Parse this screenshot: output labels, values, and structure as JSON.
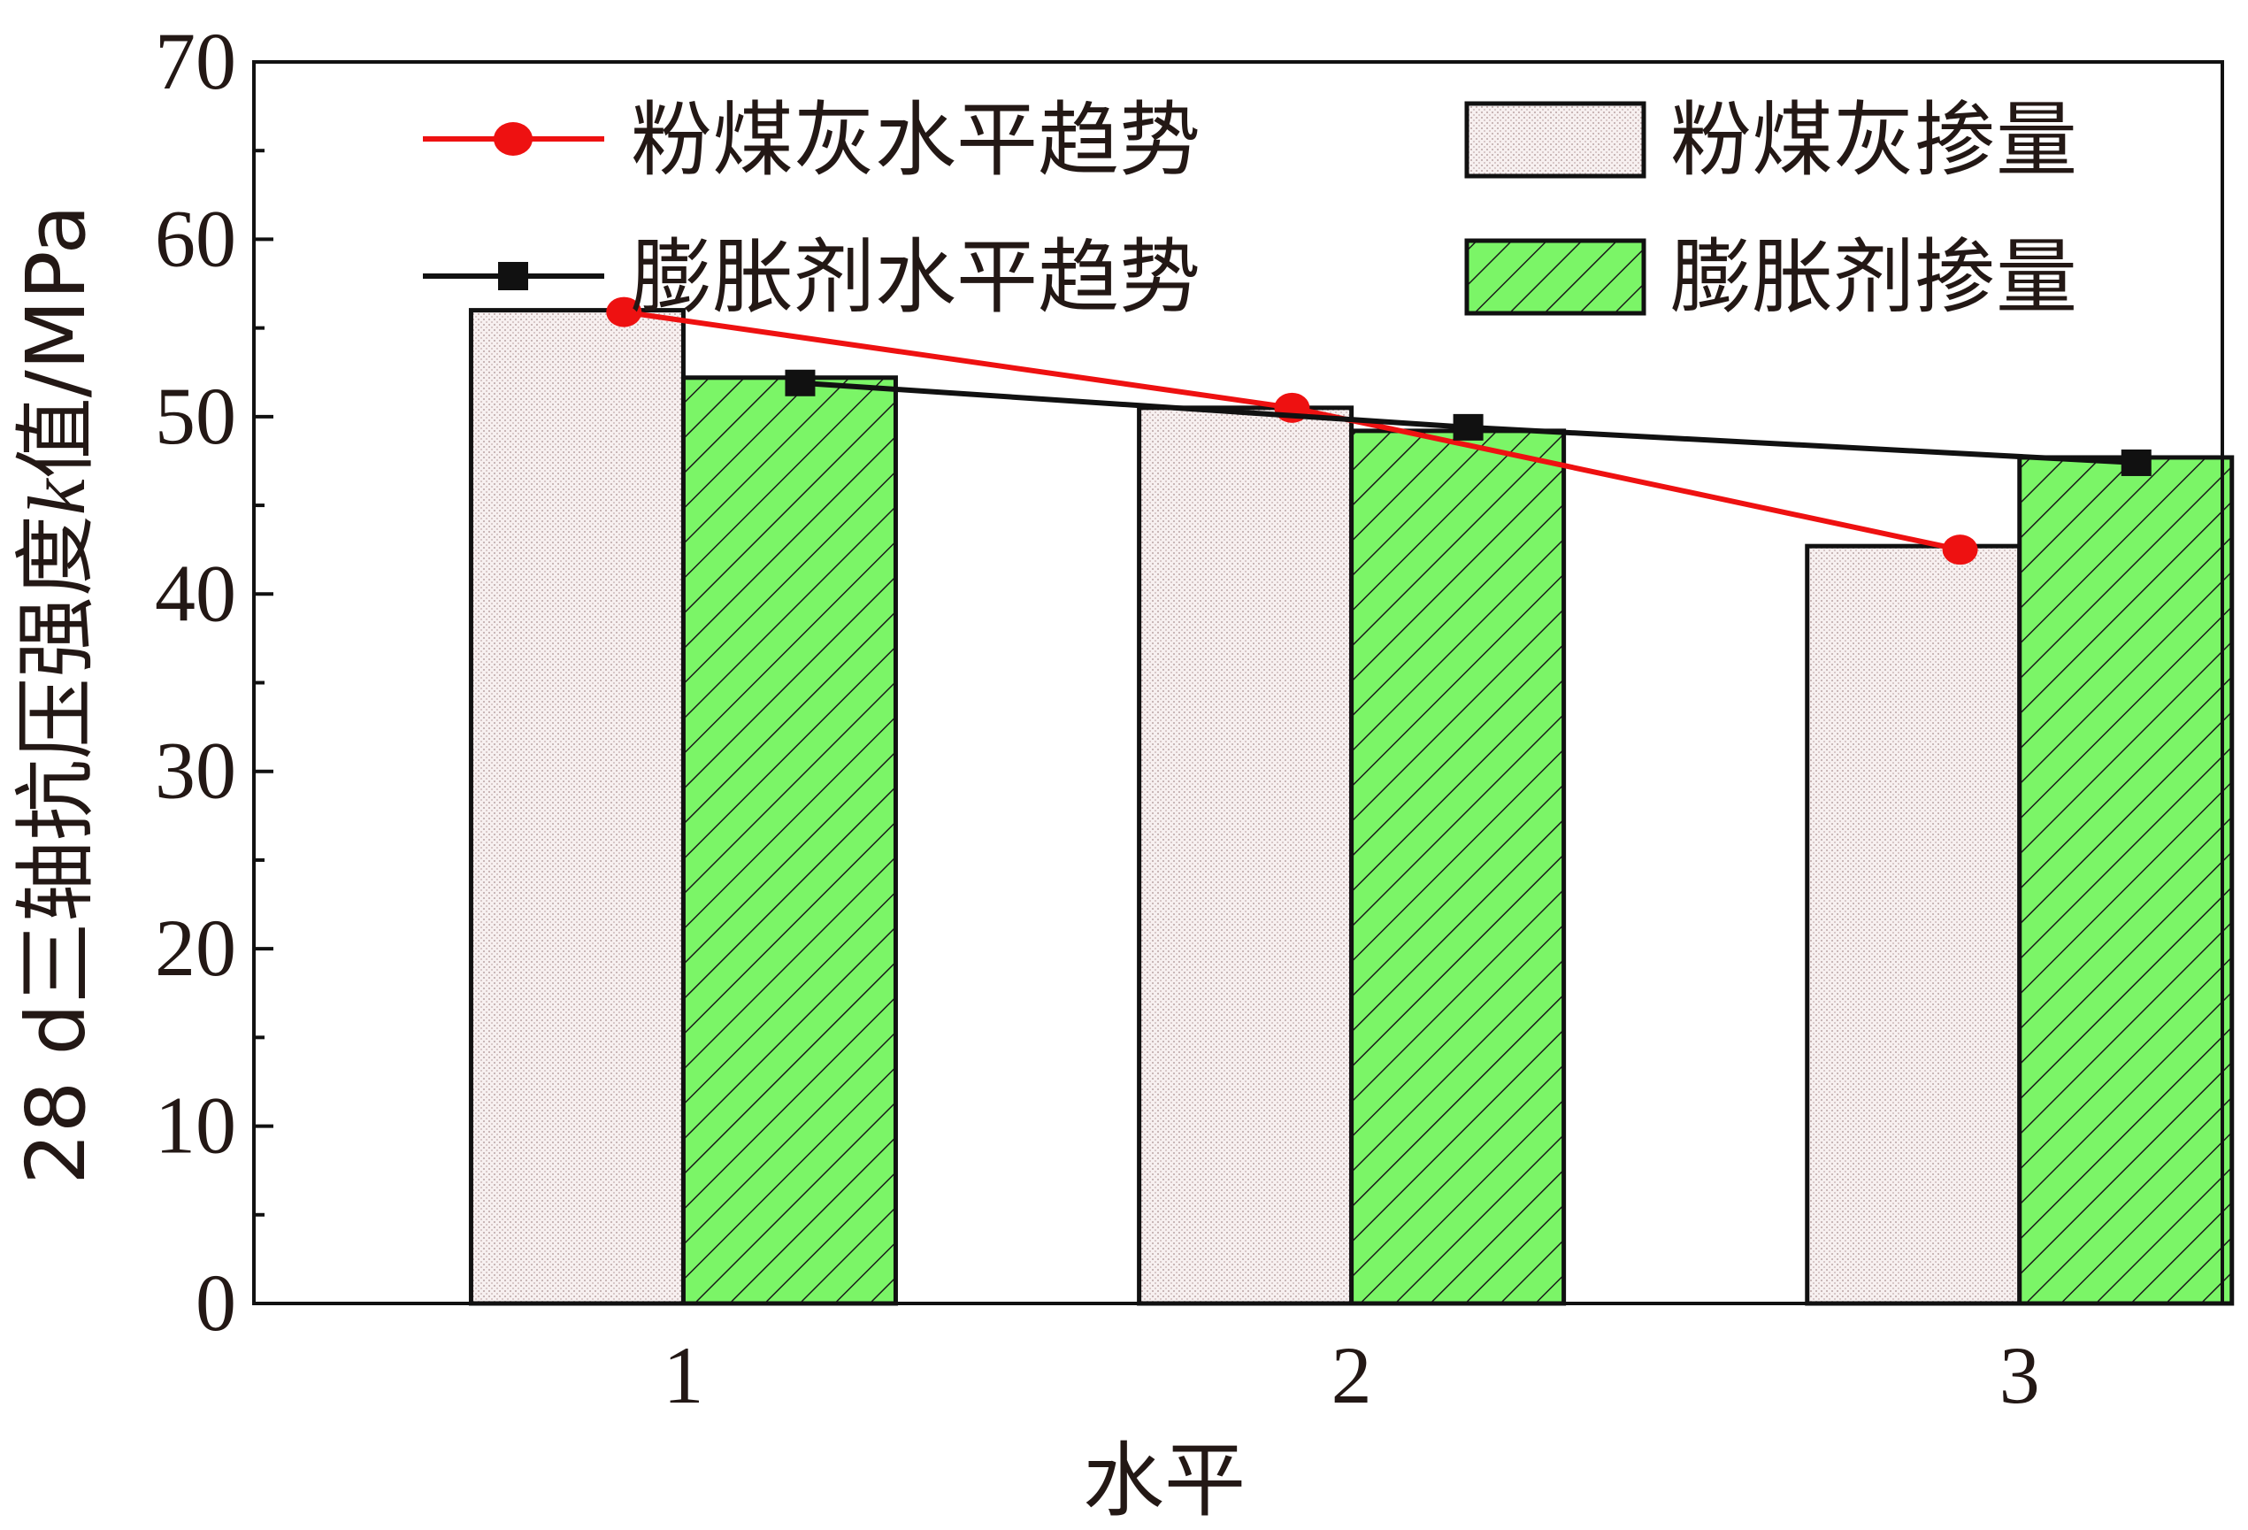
{
  "chart_data": {
    "type": "bar",
    "categories": [
      "1",
      "2",
      "3"
    ],
    "bar_series": [
      {
        "name": "粉煤灰掺量",
        "values": [
          56.0,
          50.5,
          42.7
        ],
        "fill": "#f6eeee",
        "pattern": "dots"
      },
      {
        "name": "膨胀剂掺量",
        "values": [
          52.2,
          49.2,
          47.7
        ],
        "fill": "#7bf567",
        "pattern": "hatch"
      }
    ],
    "line_series": [
      {
        "name": "粉煤灰水平趋势",
        "values": [
          55.9,
          50.5,
          42.5
        ],
        "color": "#ee1111",
        "marker": "circle"
      },
      {
        "name": "膨胀剂水平趋势",
        "values": [
          51.9,
          49.4,
          47.4
        ],
        "color": "#111111",
        "marker": "square"
      }
    ],
    "xlabel": "水平",
    "ylabel_prefix": "28 d三轴抗压强度",
    "ylabel_var": "k",
    "ylabel_suffix": "值/MPa",
    "ylim": [
      0,
      70
    ],
    "yticks": [
      "0",
      "10",
      "20",
      "30",
      "40",
      "50",
      "60",
      "70"
    ],
    "grid": false,
    "legend_position": "top"
  }
}
